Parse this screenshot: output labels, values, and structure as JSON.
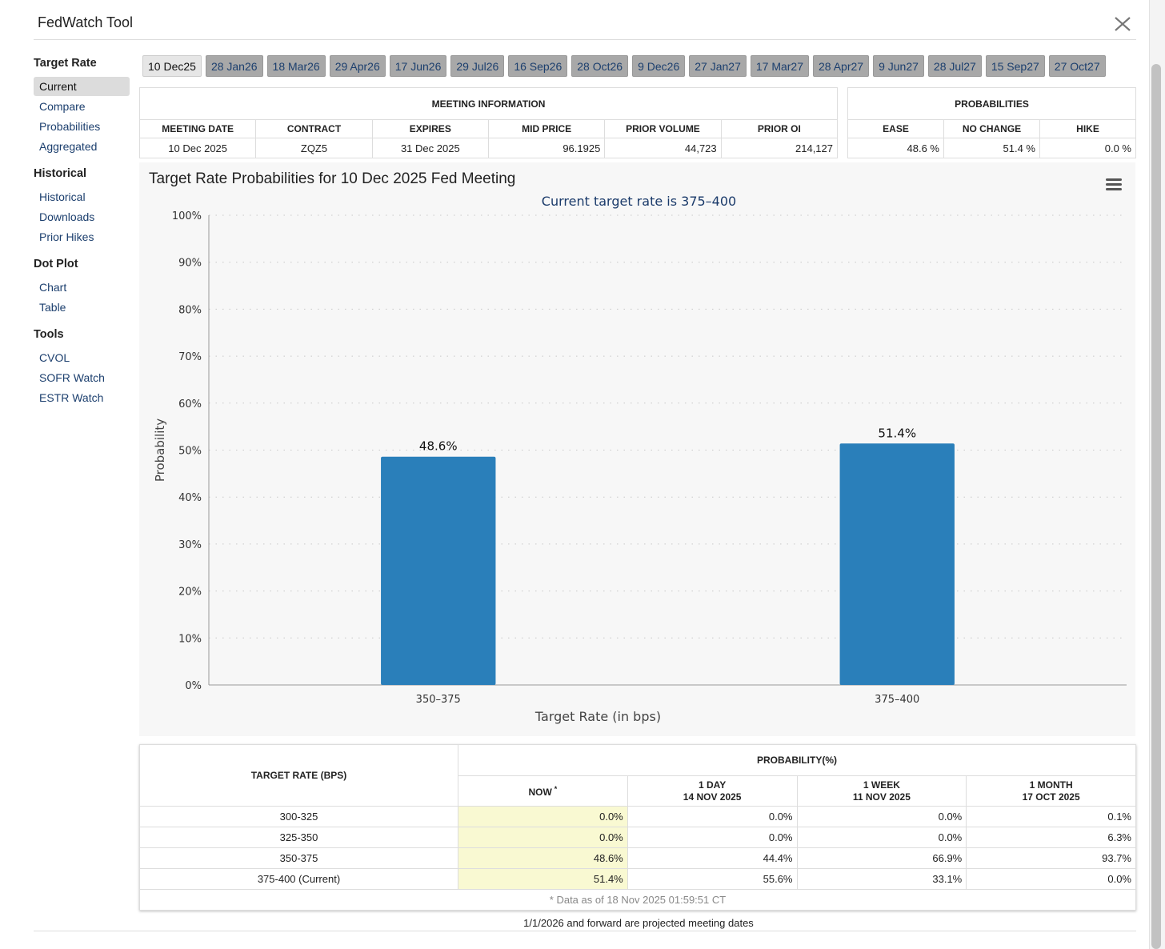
{
  "header": {
    "title": "FedWatch Tool"
  },
  "sidebar": [
    {
      "heading": "Target Rate",
      "items": [
        "Current",
        "Compare",
        "Probabilities",
        "Aggregated"
      ]
    },
    {
      "heading": "Historical",
      "items": [
        "Historical",
        "Downloads",
        "Prior Hikes"
      ]
    },
    {
      "heading": "Dot Plot",
      "items": [
        "Chart",
        "Table"
      ]
    },
    {
      "heading": "Tools",
      "items": [
        "CVOL",
        "SOFR Watch",
        "ESTR Watch"
      ]
    }
  ],
  "tabs": [
    "10 Dec25",
    "28 Jan26",
    "18 Mar26",
    "29 Apr26",
    "17 Jun26",
    "29 Jul26",
    "16 Sep26",
    "28 Oct26",
    "9 Dec26",
    "27 Jan27",
    "17 Mar27",
    "28 Apr27",
    "9 Jun27",
    "28 Jul27",
    "15 Sep27",
    "27 Oct27"
  ],
  "meeting_table": {
    "title": "MEETING INFORMATION",
    "columns": [
      "MEETING DATE",
      "CONTRACT",
      "EXPIRES",
      "MID PRICE",
      "PRIOR VOLUME",
      "PRIOR OI"
    ],
    "row": [
      "10 Dec 2025",
      "ZQZ5",
      "31 Dec 2025",
      "96.1925",
      "44,723",
      "214,127"
    ]
  },
  "probabilities_table": {
    "title": "PROBABILITIES",
    "columns": [
      "EASE",
      "NO CHANGE",
      "HIKE"
    ],
    "row": [
      "48.6 %",
      "51.4 %",
      "0.0 %"
    ]
  },
  "chart_data": {
    "type": "bar",
    "title": "Target Rate Probabilities for 10 Dec 2025 Fed Meeting",
    "subtitle": "Current target rate is 375–400",
    "x_label": "Target Rate (in bps)",
    "y_label": "Probability",
    "categories": [
      "350–375",
      "375–400"
    ],
    "values": [
      48.6,
      51.4
    ],
    "value_labels": [
      "48.6%",
      "51.4%"
    ],
    "color": "#2a7fba",
    "ylim": [
      0,
      100
    ],
    "yticks": [
      {
        "value": 0,
        "label": "0%"
      },
      {
        "value": 10,
        "label": "10%"
      },
      {
        "value": 20,
        "label": "20%"
      },
      {
        "value": 30,
        "label": "30%"
      },
      {
        "value": 40,
        "label": "40%"
      },
      {
        "value": 50,
        "label": "50%"
      },
      {
        "value": 60,
        "label": "60%"
      },
      {
        "value": 70,
        "label": "70%"
      },
      {
        "value": 80,
        "label": "80%"
      },
      {
        "value": 90,
        "label": "90%"
      },
      {
        "value": 100,
        "label": "100%"
      }
    ],
    "grid": true
  },
  "probability_table": {
    "rate_header": "TARGET RATE (BPS)",
    "group_header": "PROBABILITY(%)",
    "columns": [
      {
        "title": "NOW",
        "mark": "*"
      },
      {
        "title": "1 DAY",
        "date": "14 NOV 2025"
      },
      {
        "title": "1 WEEK",
        "date": "11 NOV 2025"
      },
      {
        "title": "1 MONTH",
        "date": "17 OCT 2025"
      }
    ],
    "rows": [
      [
        "300-325",
        "0.0%",
        "0.0%",
        "0.0%",
        "0.1%"
      ],
      [
        "325-350",
        "0.0%",
        "0.0%",
        "0.0%",
        "6.3%"
      ],
      [
        "350-375",
        "48.6%",
        "44.4%",
        "66.9%",
        "93.7%"
      ],
      [
        "375-400 (Current)",
        "51.4%",
        "55.6%",
        "33.1%",
        "0.0%"
      ]
    ],
    "note": "* Data as of 18 Nov 2025 01:59:51 CT"
  },
  "footer": "1/1/2026 and forward are projected meeting dates"
}
